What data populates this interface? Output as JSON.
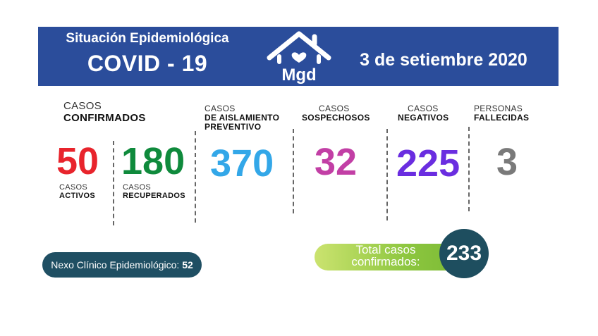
{
  "header": {
    "title_line1": "Situación Epidemiológica",
    "title_line2": "COVID - 19",
    "logo_text": "Mgd",
    "date": "3 de setiembre 2020",
    "bg_color": "#2b4d9b"
  },
  "confirmados": {
    "label_top": "CASOS",
    "label_bold": "CONFIRMADOS",
    "activos": {
      "value": "50",
      "label_top": "CASOS",
      "label_bold": "ACTIVOS",
      "color": "#e8242c"
    },
    "recuperados": {
      "value": "180",
      "label_top": "CASOS",
      "label_bold": "RECUPERADOS",
      "color": "#0f8a3c"
    }
  },
  "aislamiento": {
    "label_top": "CASOS",
    "label_bold1": "DE AISLAMIENTO",
    "label_bold2": "PREVENTIVO",
    "value": "370",
    "color": "#33a7e8"
  },
  "sospechosos": {
    "label_top": "CASOS",
    "label_bold": "SOSPECHOSOS",
    "value": "32",
    "color": "#c23fa5"
  },
  "negativos": {
    "label_top": "CASOS",
    "label_bold": "NEGATIVOS",
    "value": "225",
    "color": "#6a2de0"
  },
  "fallecidas": {
    "label_top": "PERSONAS",
    "label_bold": "FALLECIDAS",
    "value": "3",
    "color": "#7a7a7a"
  },
  "nexo": {
    "label": "Nexo Clínico Epidemiológico:",
    "value": "52"
  },
  "total": {
    "line1": "Total casos",
    "line2": "confirmados:",
    "value": "233"
  }
}
